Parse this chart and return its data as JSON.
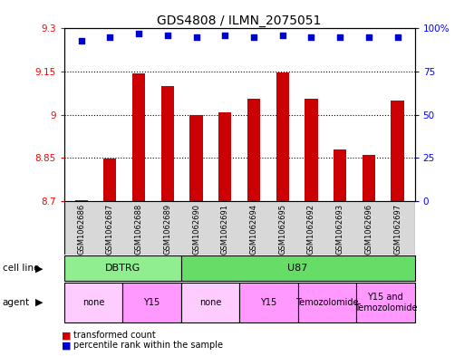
{
  "title": "GDS4808 / ILMN_2075051",
  "samples": [
    "GSM1062686",
    "GSM1062687",
    "GSM1062688",
    "GSM1062689",
    "GSM1062690",
    "GSM1062691",
    "GSM1062694",
    "GSM1062695",
    "GSM1062692",
    "GSM1062693",
    "GSM1062696",
    "GSM1062697"
  ],
  "bar_values": [
    8.702,
    8.848,
    9.145,
    9.1,
    9.0,
    9.01,
    9.055,
    9.147,
    9.055,
    8.88,
    8.862,
    9.05
  ],
  "percentile_values": [
    93,
    95,
    97,
    96,
    95,
    96,
    95,
    96,
    95,
    95,
    95,
    95
  ],
  "bar_color": "#cc0000",
  "dot_color": "#0000cc",
  "ylim_left": [
    8.7,
    9.3
  ],
  "ylim_right": [
    0,
    100
  ],
  "yticks_left": [
    8.7,
    8.85,
    9.0,
    9.15,
    9.3
  ],
  "ytick_labels_left": [
    "8.7",
    "8.85",
    "9",
    "9.15",
    "9.3"
  ],
  "yticks_right": [
    0,
    25,
    50,
    75,
    100
  ],
  "ytick_labels_right": [
    "0",
    "25",
    "50",
    "75",
    "100%"
  ],
  "hlines": [
    8.85,
    9.0,
    9.15
  ],
  "cell_line_groups": [
    {
      "label": "DBTRG",
      "start": 0,
      "end": 4,
      "color": "#90EE90"
    },
    {
      "label": "U87",
      "start": 4,
      "end": 12,
      "color": "#66DD66"
    }
  ],
  "agent_groups": [
    {
      "label": "none",
      "start": 0,
      "end": 2,
      "color": "#FFCCFF"
    },
    {
      "label": "Y15",
      "start": 2,
      "end": 4,
      "color": "#FF99FF"
    },
    {
      "label": "none",
      "start": 4,
      "end": 6,
      "color": "#FFCCFF"
    },
    {
      "label": "Y15",
      "start": 6,
      "end": 8,
      "color": "#FF99FF"
    },
    {
      "label": "Temozolomide",
      "start": 8,
      "end": 10,
      "color": "#FF99FF"
    },
    {
      "label": "Y15 and\nTemozolomide",
      "start": 10,
      "end": 12,
      "color": "#FF99FF"
    }
  ],
  "legend_labels": [
    "transformed count",
    "percentile rank within the sample"
  ],
  "legend_colors": [
    "#cc0000",
    "#0000cc"
  ],
  "cell_line_label": "cell line",
  "agent_label": "agent",
  "background_color": "#ffffff",
  "title_fontsize": 10,
  "tick_fontsize": 7.5
}
